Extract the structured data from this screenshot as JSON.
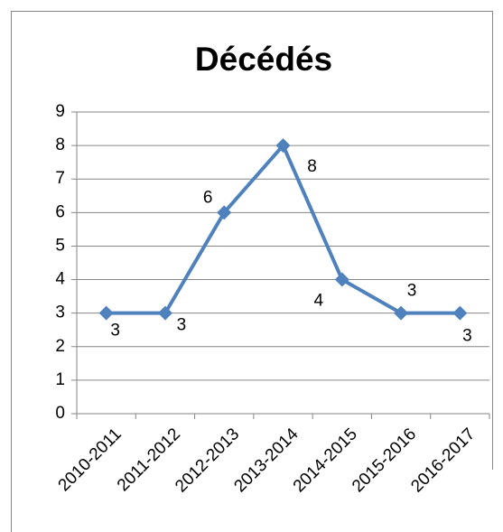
{
  "chart_data": {
    "type": "line",
    "title": "Décédés",
    "categories": [
      "2010-2011",
      "2011-2012",
      "2012-2013",
      "2013-2014",
      "2014-2015",
      "2015-2016",
      "2016-2017"
    ],
    "values": [
      3,
      3,
      6,
      8,
      4,
      3,
      3
    ],
    "color": "#4f81bd",
    "ylim": [
      0,
      9
    ],
    "yticks": [
      0,
      1,
      2,
      3,
      4,
      5,
      6,
      7,
      8,
      9
    ],
    "grid": true
  }
}
